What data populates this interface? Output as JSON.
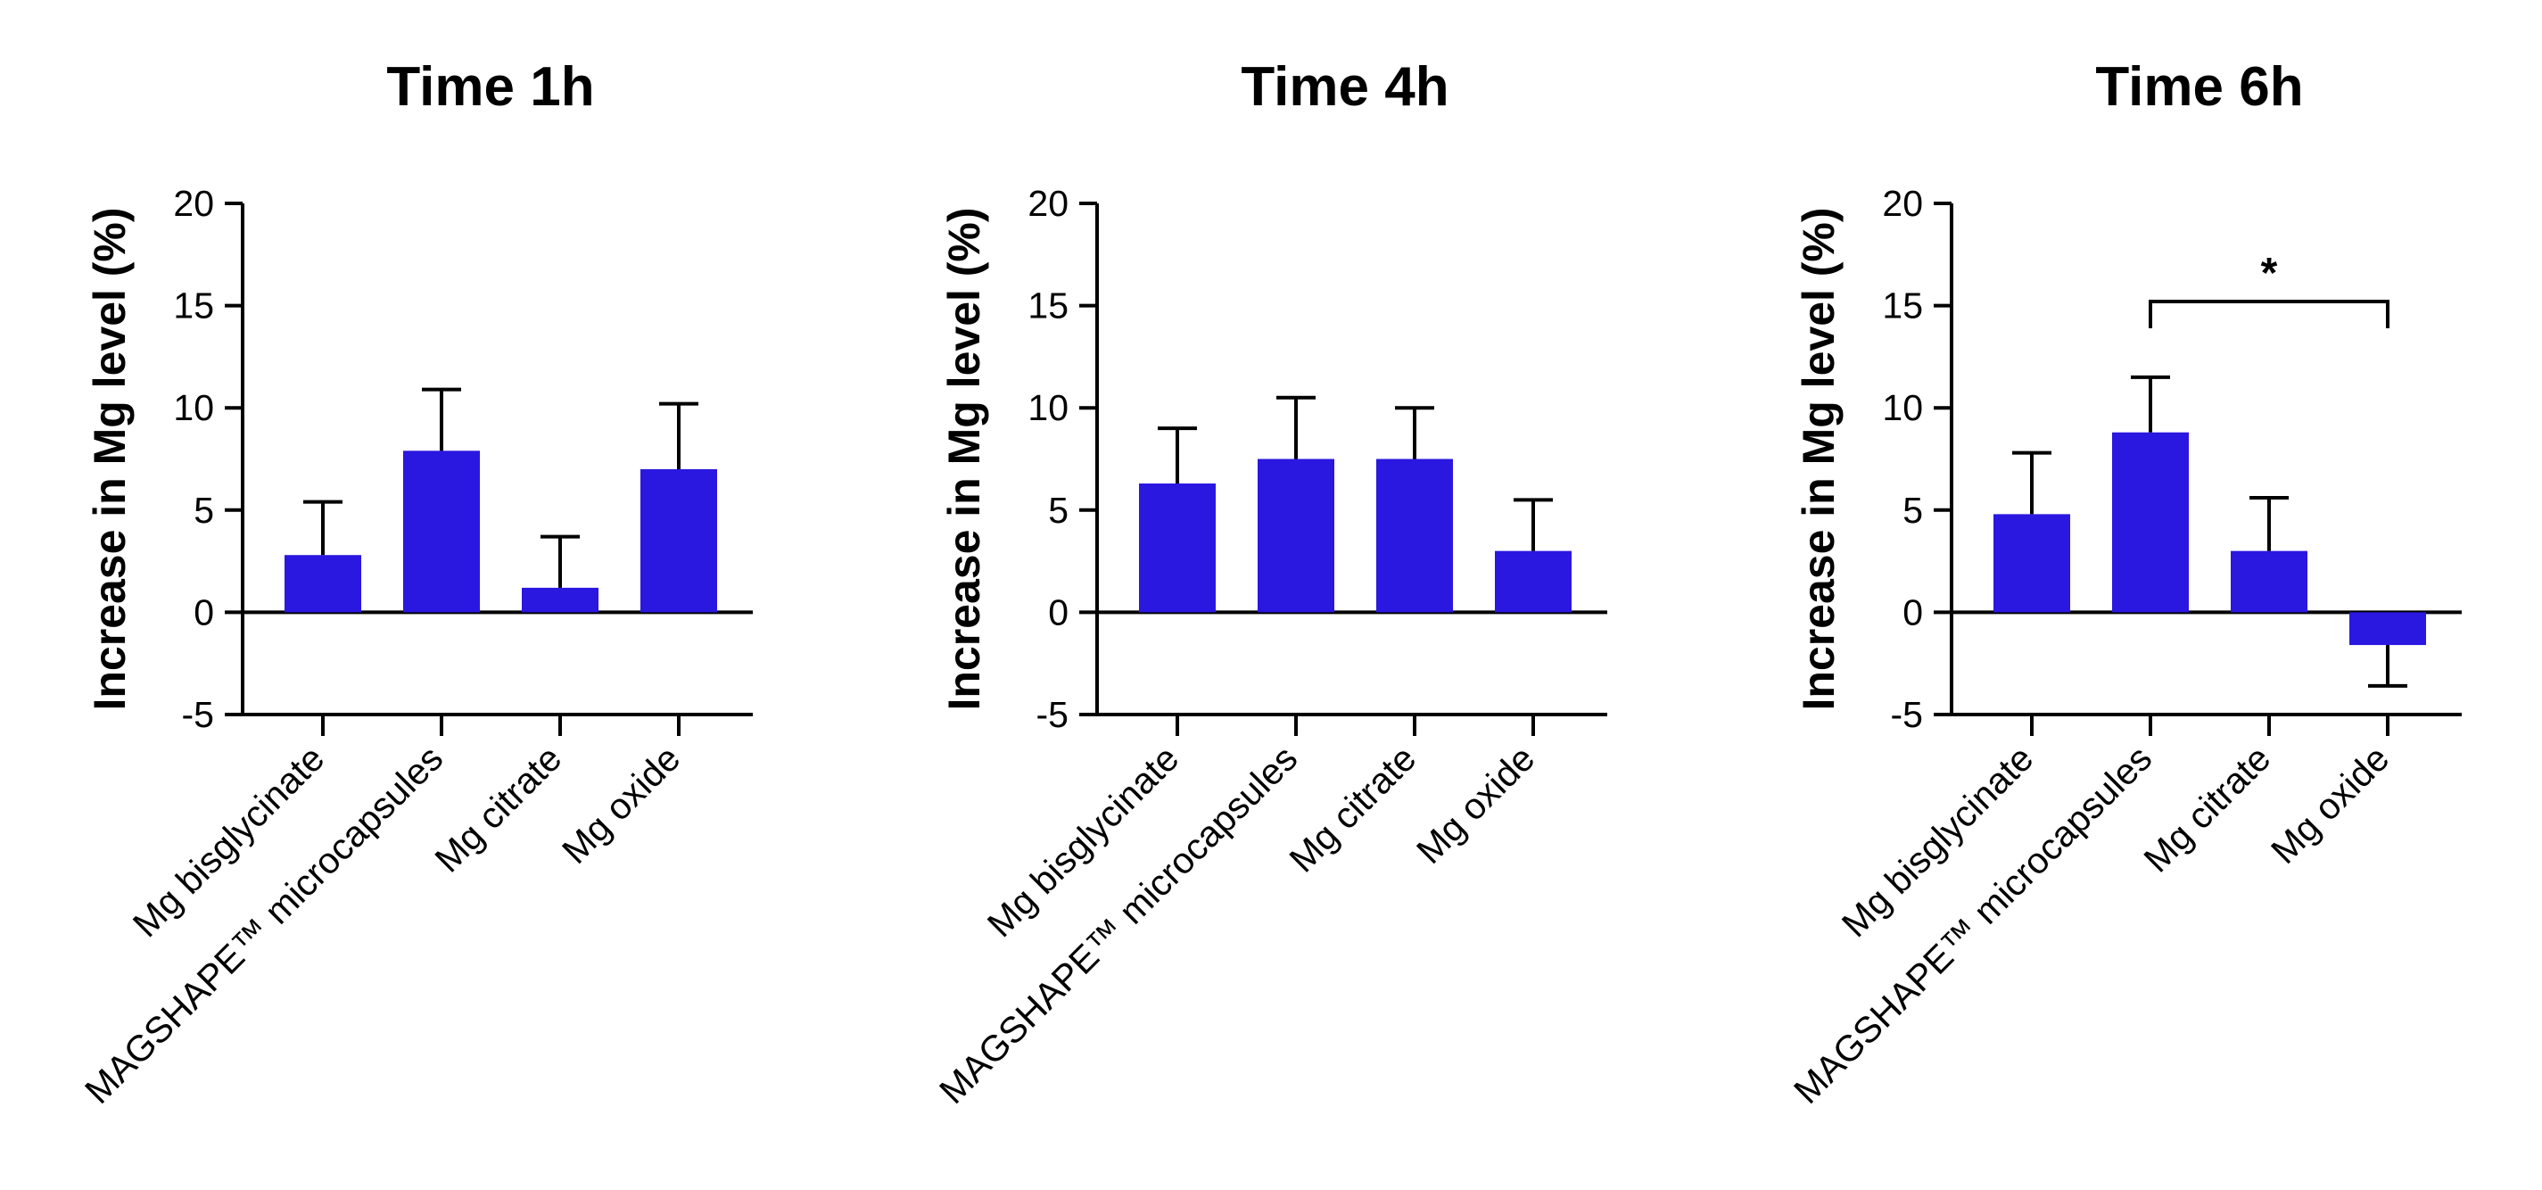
{
  "chart_data": [
    {
      "type": "bar",
      "title": "Time 1h",
      "ylabel": "Increase in Mg level (%)",
      "xlabel": "",
      "ylim": [
        -5,
        20
      ],
      "yticks": [
        "-5",
        "0",
        "5",
        "10",
        "15",
        "20"
      ],
      "categories": [
        "Mg bisglycinate",
        "MAGSHAPE™ microcapsules",
        "Mg citrate",
        "Mg oxide"
      ],
      "values": [
        2.8,
        7.9,
        1.2,
        7.0
      ],
      "errors": [
        2.6,
        3.0,
        2.5,
        3.2
      ],
      "bar_color": "#2a17e0",
      "significance": []
    },
    {
      "type": "bar",
      "title": "Time 4h",
      "ylabel": "Increase in Mg level (%)",
      "xlabel": "",
      "ylim": [
        -5,
        20
      ],
      "yticks": [
        "-5",
        "0",
        "5",
        "10",
        "15",
        "20"
      ],
      "categories": [
        "Mg bisglycinate",
        "MAGSHAPE™ microcapsules",
        "Mg citrate",
        "Mg oxide"
      ],
      "values": [
        6.3,
        7.5,
        7.5,
        3.0
      ],
      "errors": [
        2.7,
        3.0,
        2.5,
        2.5
      ],
      "bar_color": "#2a17e0",
      "significance": []
    },
    {
      "type": "bar",
      "title": "Time 6h",
      "ylabel": "Increase in Mg level (%)",
      "xlabel": "",
      "ylim": [
        -5,
        20
      ],
      "yticks": [
        "-5",
        "0",
        "5",
        "10",
        "15",
        "20"
      ],
      "categories": [
        "Mg bisglycinate",
        "MAGSHAPE™ microcapsules",
        "Mg citrate",
        "Mg oxide"
      ],
      "values": [
        4.8,
        8.8,
        3.0,
        -1.6
      ],
      "errors": [
        3.0,
        2.7,
        2.6,
        2.0
      ],
      "bar_color": "#2a17e0",
      "significance": [
        {
          "from": 1,
          "to": 3,
          "label": "*",
          "y": 15.2
        }
      ]
    }
  ]
}
